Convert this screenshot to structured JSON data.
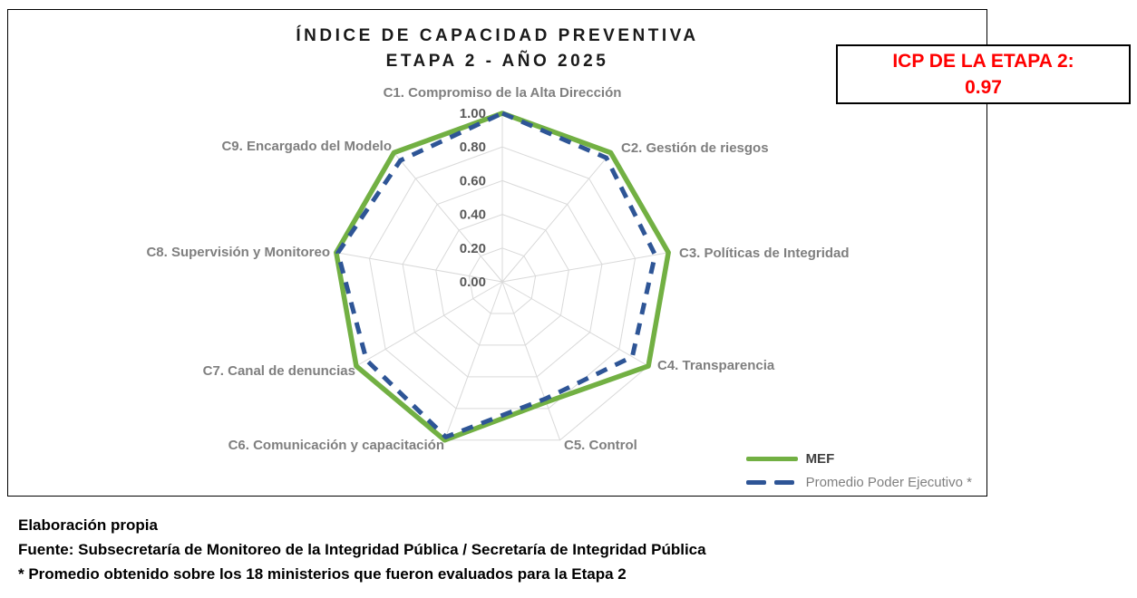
{
  "title": {
    "line1": "ÍNDICE DE CAPACIDAD PREVENTIVA",
    "line2": "ETAPA 2  - AÑO 2025"
  },
  "icp_box": {
    "label": "ICP DE LA ETAPA 2:",
    "value": "0.97",
    "text_color": "#FF0000"
  },
  "chart_data": {
    "type": "radar",
    "title": "ÍNDICE DE CAPACIDAD PREVENTIVA ETAPA 2 - AÑO 2025",
    "categories": [
      "C1. Compromiso de la Alta Dirección",
      "C2. Gestión de riesgos",
      "C3.  Políticas de Integridad",
      "C4. Transparencia",
      "C5. Control",
      "C6. Comunicación y capacitación",
      "C7. Canal de denuncias",
      "C8. Supervisión y Monitoreo",
      "C9. Encargado del Modelo"
    ],
    "series": [
      {
        "name": "MEF",
        "style": "solid",
        "color": "#72B043",
        "values": [
          1.0,
          1.0,
          1.0,
          1.0,
          0.76,
          1.0,
          1.0,
          1.0,
          1.0
        ]
      },
      {
        "name": "Promedio Poder Ejecutivo *",
        "style": "dashed",
        "color": "#2E5596",
        "values": [
          1.0,
          0.96,
          0.92,
          0.89,
          0.74,
          0.98,
          0.93,
          0.99,
          0.94
        ]
      }
    ],
    "axis": {
      "min": 0,
      "max": 1,
      "tick_interval": 0.2,
      "tick_labels": [
        "1.00",
        "0.80",
        "0.60",
        "0.40",
        "0.20",
        "0.00"
      ],
      "tick_color": "#595959"
    },
    "grid": true,
    "grid_color": "#D9D9D9",
    "category_label_color": "#7F7F7F",
    "legend_position": "bottom-right"
  },
  "footer": {
    "lines": [
      "Elaboración propia",
      "Fuente: Subsecretaría de Monitoreo de la Integridad Pública / Secretaría de Integridad Pública",
      "* Promedio obtenido sobre los 18 ministerios que fueron evaluados para la Etapa 2"
    ]
  }
}
